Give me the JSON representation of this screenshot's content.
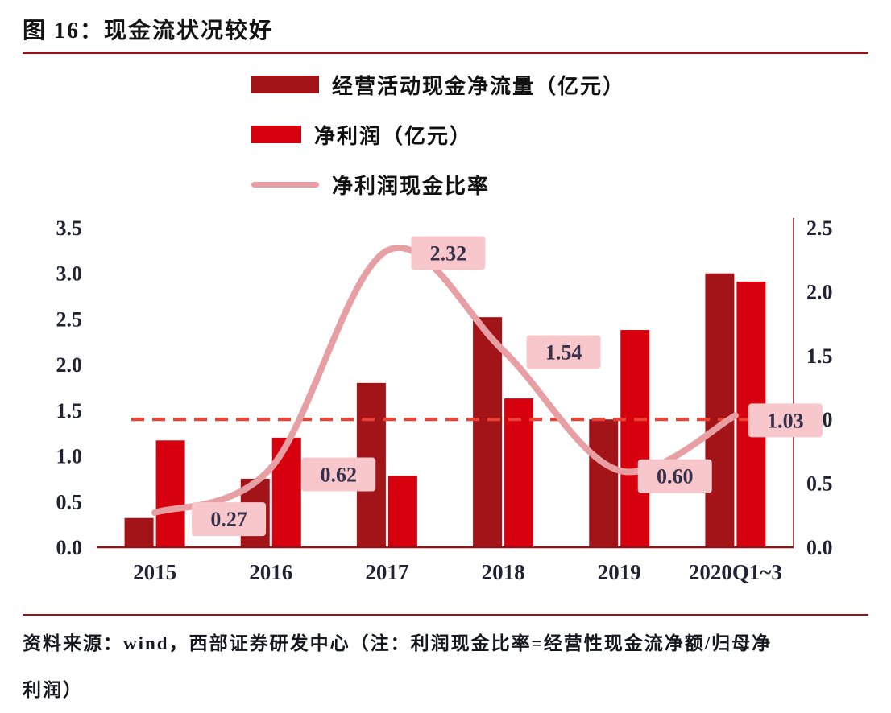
{
  "header": {
    "title": "图 16：现金流状况较好"
  },
  "legend": {
    "items": [
      {
        "label": "经营活动现金净流量（亿元）",
        "type": "bar",
        "color": "#a31419"
      },
      {
        "label": "净利润（亿元）",
        "type": "bar",
        "color": "#d6000f"
      },
      {
        "label": "净利润现金比率",
        "type": "line",
        "color": "#e79fa3"
      }
    ]
  },
  "chart_data": {
    "type": "bar",
    "subtype": "grouped bars with secondary-axis line",
    "categories": [
      "2015",
      "2016",
      "2017",
      "2018",
      "2019",
      "2020Q1~3"
    ],
    "series": [
      {
        "name": "经营活动现金净流量（亿元）",
        "type": "bar",
        "axis": "left",
        "color": "#a31419",
        "values": [
          0.32,
          0.75,
          1.8,
          2.52,
          1.4,
          3.0
        ]
      },
      {
        "name": "净利润（亿元）",
        "type": "bar",
        "axis": "left",
        "color": "#d6000f",
        "values": [
          1.17,
          1.2,
          0.78,
          1.63,
          2.38,
          2.91
        ]
      },
      {
        "name": "净利润现金比率",
        "type": "line",
        "axis": "right",
        "color": "#e79fa3",
        "values": [
          0.27,
          0.62,
          2.32,
          1.54,
          0.6,
          1.03
        ],
        "labels": [
          "0.27",
          "0.62",
          "2.32",
          "1.54",
          "0.60",
          "1.03"
        ]
      }
    ],
    "reference_line": {
      "axis": "right",
      "value": 1.0,
      "style": "dashed",
      "color": "#ed4134"
    },
    "left_axis": {
      "min": 0.0,
      "max": 3.5,
      "step": 0.5,
      "ticks": [
        "3.5",
        "3.0",
        "2.5",
        "2.0",
        "1.5",
        "1.0",
        "0.5",
        "0.0"
      ]
    },
    "right_axis": {
      "min": 0.0,
      "max": 2.5,
      "step": 0.5,
      "ticks": [
        "2.5",
        "2.0",
        "1.5",
        "1.0",
        "0.5",
        "0.0"
      ]
    },
    "grid": "off",
    "legend_position": "top",
    "label_box": {
      "bg": "#f8c7cb",
      "text_color": "#36304a"
    },
    "axis_line_color": "#8e1318"
  },
  "footer": {
    "line1": "资料来源：wind，西部证券研发中心（注：利润现金比率=经营性现金流净额/归母净",
    "line2": "利润）"
  }
}
